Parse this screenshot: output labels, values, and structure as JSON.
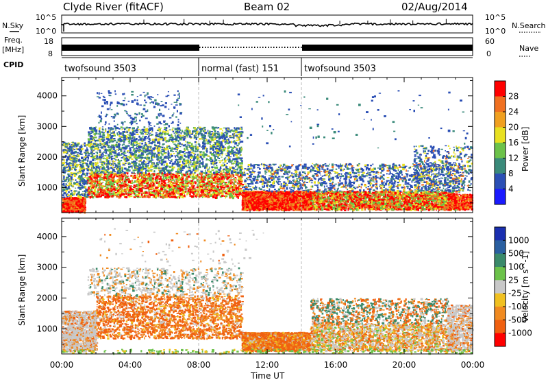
{
  "header": {
    "station": "Clyde River (fitACF)",
    "beam": "Beam 02",
    "date": "02/Aug/2014"
  },
  "strip_labels": {
    "nsky": "N.Sky",
    "freq_line1": "Freq.",
    "freq_line2": "[MHz]",
    "cpid": "CPID",
    "nsearch": "N.Search",
    "nave": "Nave",
    "nsky_top": "10^5",
    "nsky_bottom": "10^0",
    "freq_top": "18",
    "freq_bottom": "8",
    "nave_top": "60",
    "nave_bottom": "0"
  },
  "cpid_segments": [
    {
      "label": "twofsound 3503",
      "start_hour": 0,
      "end_hour": 8
    },
    {
      "label": "normal (fast) 151",
      "start_hour": 8,
      "end_hour": 14
    },
    {
      "label": "twofsound 3503",
      "start_hour": 14,
      "end_hour": 24
    }
  ],
  "colors": {
    "power_scale": [
      "#1a1aff",
      "#2b4fb5",
      "#3a8a7a",
      "#6cc24a",
      "#e8e020",
      "#f0a020",
      "#f07020",
      "#ff0000"
    ],
    "velocity_scale": [
      "#1a2fb0",
      "#2a5fa0",
      "#3a8a6a",
      "#6cc24a",
      "#c8c8c8",
      "#f0c020",
      "#f08a20",
      "#f06010",
      "#ff0000"
    ]
  },
  "chart_data": [
    {
      "type": "heatmap",
      "title": "",
      "xlabel": "Time UT",
      "ylabel": "Slant Range [km]",
      "xlim": [
        "00:00",
        "24:00"
      ],
      "ylim": [
        180,
        4600
      ],
      "x_ticks": [
        "00:00",
        "04:00",
        "08:00",
        "12:00",
        "16:00",
        "20:00",
        "00:00"
      ],
      "y_ticks": [
        1000,
        2000,
        3000,
        4000
      ],
      "colorbar_label": "Power [dB]",
      "colorbar_ticks": [
        4,
        8,
        12,
        16,
        20,
        24,
        28
      ],
      "colorbar_range": [
        0,
        32
      ]
    },
    {
      "type": "heatmap",
      "title": "",
      "xlabel": "Time UT",
      "ylabel": "Slant Range [km]",
      "xlim": [
        "00:00",
        "24:00"
      ],
      "ylim": [
        180,
        4600
      ],
      "x_ticks": [
        "00:00",
        "04:00",
        "08:00",
        "12:00",
        "16:00",
        "20:00",
        "00:00"
      ],
      "y_ticks": [
        1000,
        2000,
        3000,
        4000
      ],
      "colorbar_label": "Velocity [m s^-1]",
      "colorbar_ticks": [
        "1000",
        "500",
        "100",
        "25",
        "-25",
        "-100",
        "-500",
        "-1000"
      ]
    }
  ]
}
